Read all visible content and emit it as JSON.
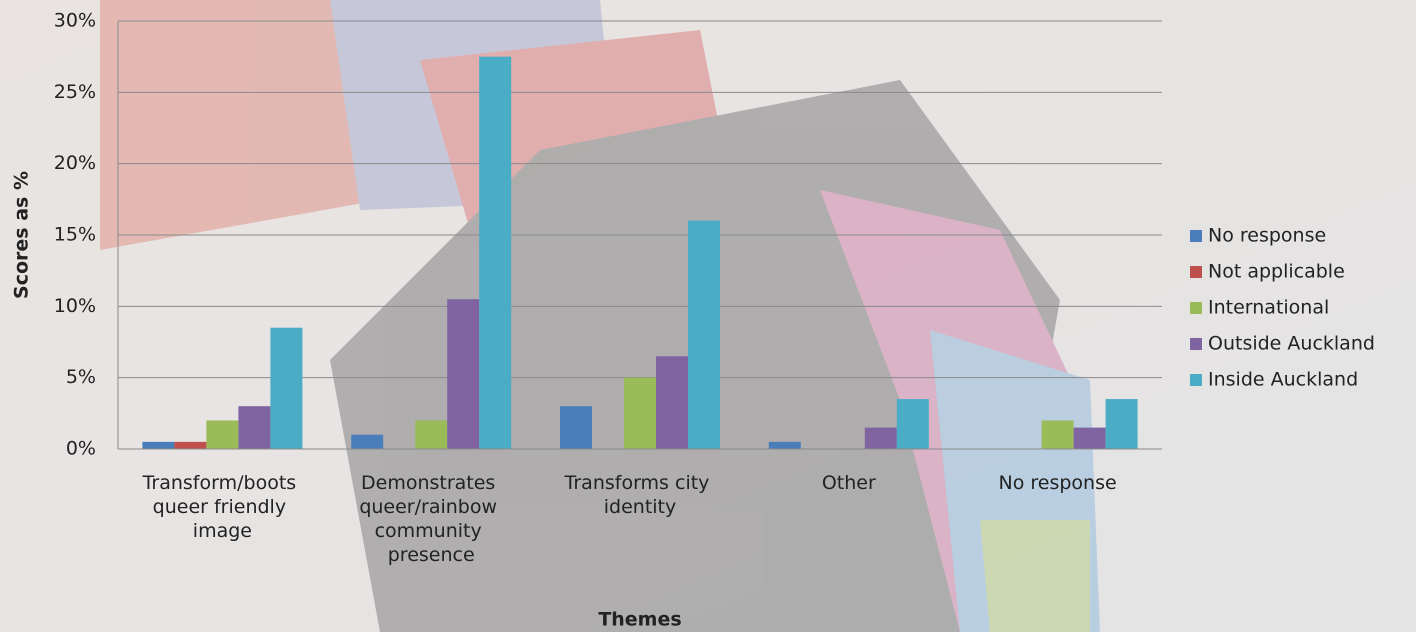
{
  "chart_data": {
    "type": "bar",
    "x_label": "Themes",
    "y_label": "Scores as %",
    "categories": [
      "Transform/boots queer friendly image",
      "Demonstrates queer/rainbow community presence",
      "Transforms city identity",
      "Other",
      "No response"
    ],
    "series": [
      {
        "name": "No response",
        "color": "#4a7ebb",
        "values": [
          0.5,
          1,
          3,
          0.5,
          0
        ]
      },
      {
        "name": "Not applicable",
        "color": "#c0504d",
        "values": [
          0.5,
          0,
          0,
          0,
          0
        ]
      },
      {
        "name": "International",
        "color": "#9bbb59",
        "values": [
          2,
          2,
          5,
          0,
          2
        ]
      },
      {
        "name": "Outside Auckland",
        "color": "#8064a2",
        "values": [
          3,
          10.5,
          6.5,
          1.5,
          1.5
        ]
      },
      {
        "name": "Inside Auckland",
        "color": "#4bacc6",
        "values": [
          8.5,
          27.5,
          16,
          3.5,
          3.5
        ]
      }
    ],
    "ylim": [
      0,
      30
    ],
    "yticks": [
      {
        "value": 0,
        "label": "0%"
      },
      {
        "value": 5,
        "label": "5%"
      },
      {
        "value": 10,
        "label": "10%"
      },
      {
        "value": 15,
        "label": "15%"
      },
      {
        "value": 20,
        "label": "20%"
      },
      {
        "value": 25,
        "label": "25%"
      },
      {
        "value": 30,
        "label": "30%"
      }
    ],
    "grid": true,
    "legend": "right"
  }
}
